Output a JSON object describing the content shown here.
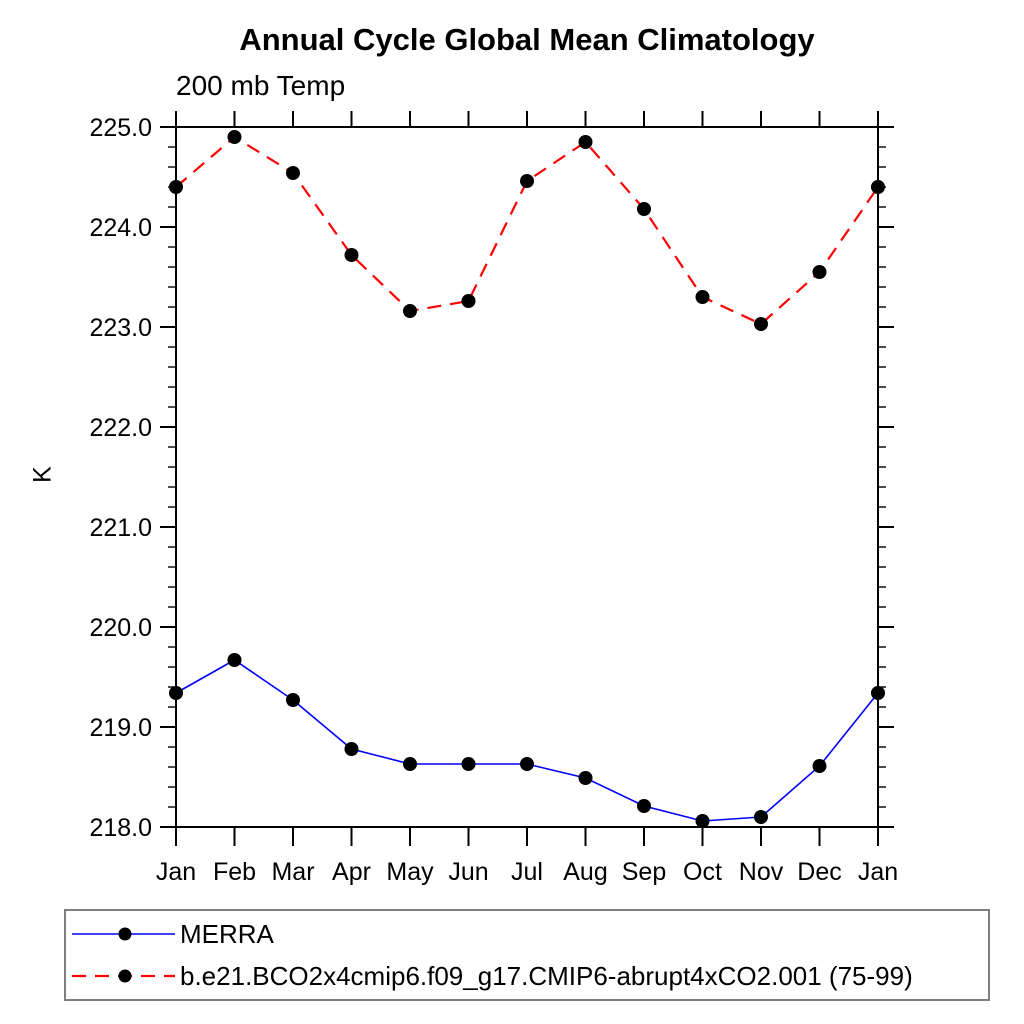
{
  "chart_data": {
    "type": "line",
    "title": "Annual Cycle Global Mean Climatology",
    "subtitle": "200 mb Temp",
    "ylabel": "K",
    "x_categories": [
      "Jan",
      "Feb",
      "Mar",
      "Apr",
      "May",
      "Jun",
      "Jul",
      "Aug",
      "Sep",
      "Oct",
      "Nov",
      "Dec",
      "Jan"
    ],
    "ylim": [
      218.0,
      225.0
    ],
    "ytick_interval": 1.0,
    "yminor_interval": 0.2,
    "ytick_labels": [
      "218.0",
      "219.0",
      "220.0",
      "221.0",
      "222.0",
      "223.0",
      "224.0",
      "225.0"
    ],
    "grid": false,
    "legend_position": "bottom-left",
    "axis_color": "#000000",
    "marker_color": "#000000",
    "series": [
      {
        "name": "MERRA",
        "color": "#0000ff",
        "style": "solid",
        "marker": "circle",
        "values": [
          219.34,
          219.67,
          219.27,
          218.78,
          218.63,
          218.63,
          218.63,
          218.49,
          218.21,
          218.06,
          218.1,
          218.61,
          219.34
        ]
      },
      {
        "name": "b.e21.BCO2x4cmip6.f09_g17.CMIP6-abrupt4xCO2.001 (75-99)",
        "color": "#ff0000",
        "style": "dashed",
        "marker": "circle",
        "values": [
          224.4,
          224.9,
          224.54,
          223.72,
          223.16,
          223.26,
          224.46,
          224.85,
          224.18,
          223.3,
          223.03,
          223.55,
          224.4
        ]
      }
    ]
  }
}
